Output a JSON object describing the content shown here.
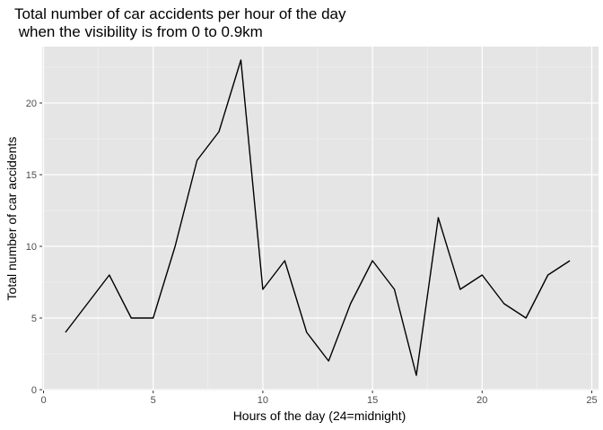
{
  "chart_data": {
    "type": "line",
    "title_lines": [
      "Total number of car accidents per hour of the day",
      " when the visibility is from 0 to 0.9km"
    ],
    "xlabel": "Hours of the day (24=midnight)",
    "ylabel": "Total number of car accidents",
    "xlim": [
      0,
      25
    ],
    "ylim": [
      0,
      24
    ],
    "x_ticks": [
      0,
      5,
      10,
      15,
      20,
      25
    ],
    "y_ticks": [
      0,
      5,
      10,
      15,
      20
    ],
    "grid": true,
    "legend": "none",
    "colors": {
      "panel": "#e5e5e5",
      "grid_major": "#ffffff",
      "line": "#000000",
      "tick_text": "#4d4d4d"
    },
    "series": [
      {
        "x": [
          1,
          2,
          3,
          4,
          5,
          6,
          7,
          8,
          9,
          10,
          11,
          12,
          13,
          14,
          15,
          16,
          17,
          18,
          19,
          20,
          21,
          22,
          23,
          24
        ],
        "y": [
          4,
          6,
          8,
          5,
          5,
          10,
          16,
          18,
          23,
          7,
          9,
          4,
          2,
          6,
          9,
          7,
          1,
          12,
          7,
          8,
          6,
          5,
          8,
          9
        ]
      }
    ]
  }
}
